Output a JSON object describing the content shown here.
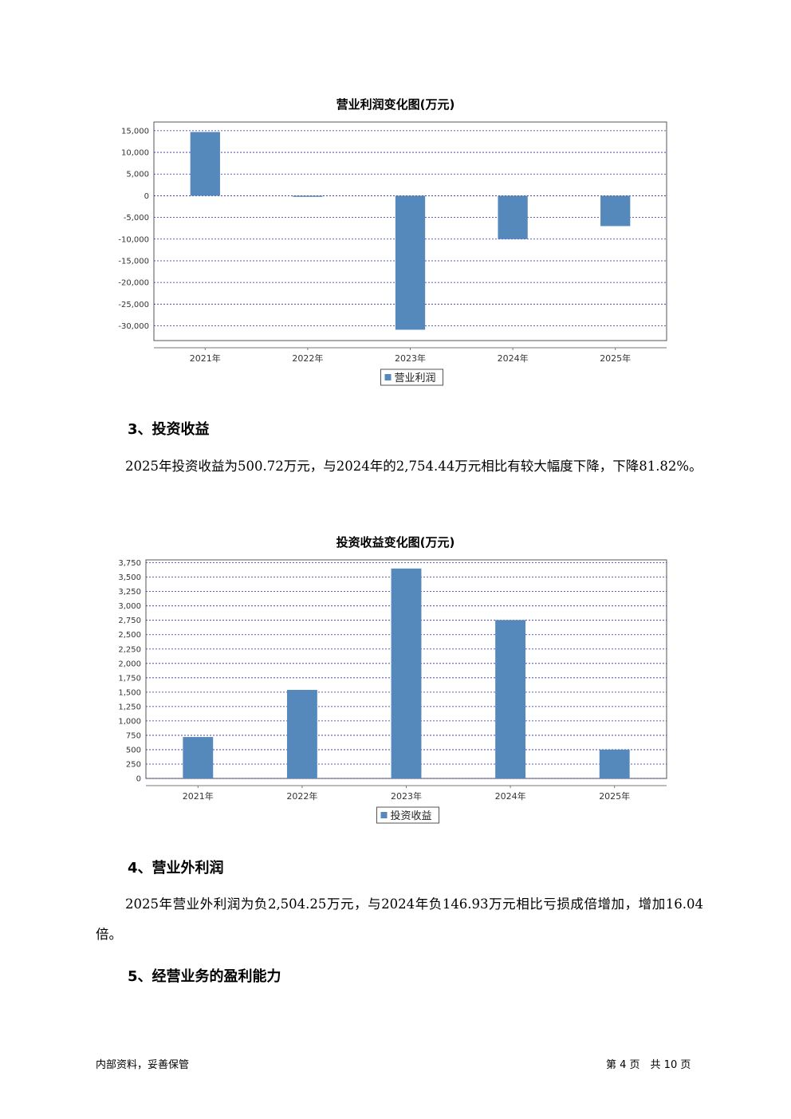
{
  "chart1": {
    "title": "营业利润变化图(万元)",
    "legend": "营业利润",
    "color": "#5588bb"
  },
  "chart2": {
    "title": "投资收益变化图(万元)",
    "legend": "投资收益",
    "color": "#5588bb"
  },
  "chart_data": [
    {
      "type": "bar",
      "title": "营业利润变化图(万元)",
      "categories": [
        "2021年",
        "2022年",
        "2023年",
        "2024年",
        "2025年"
      ],
      "series": [
        {
          "name": "营业利润",
          "values": [
            14700,
            -250,
            -30900,
            -10000,
            -7000
          ]
        }
      ],
      "yticks": [
        "15,000",
        "10,000",
        "5,000",
        "0",
        "-5,000",
        "-10,000",
        "-15,000",
        "-20,000",
        "-25,000",
        "-30,000"
      ],
      "ylim": [
        -33400,
        17000
      ],
      "grid": true,
      "legend_position": "bottom"
    },
    {
      "type": "bar",
      "title": "投资收益变化图(万元)",
      "categories": [
        "2021年",
        "2022年",
        "2023年",
        "2024年",
        "2025年"
      ],
      "series": [
        {
          "name": "投资收益",
          "values": [
            720,
            1540,
            3650,
            2754.44,
            500.72
          ]
        }
      ],
      "yticks": [
        "3,750",
        "3,500",
        "3,250",
        "3,000",
        "2,750",
        "2,500",
        "2,250",
        "2,000",
        "1,750",
        "1,500",
        "1,250",
        "1,000",
        "750",
        "500",
        "250",
        "0"
      ],
      "ylim": [
        0,
        3800
      ],
      "grid": true,
      "legend_position": "bottom"
    }
  ],
  "sections": {
    "s3_heading": "3、投资收益",
    "s3_text": "2025年投资收益为500.72万元，与2024年的2,754.44万元相比有较大幅度下降，下降81.82%。",
    "s4_heading": "4、营业外利润",
    "s4_text": "2025年营业外利润为负2,504.25万元，与2024年负146.93万元相比亏损成倍增加，增加16.04倍。",
    "s5_heading": "5、经营业务的盈利能力"
  },
  "footer": {
    "left": "内部资料，妥善保管",
    "right": "第 4 页　共 10 页"
  }
}
